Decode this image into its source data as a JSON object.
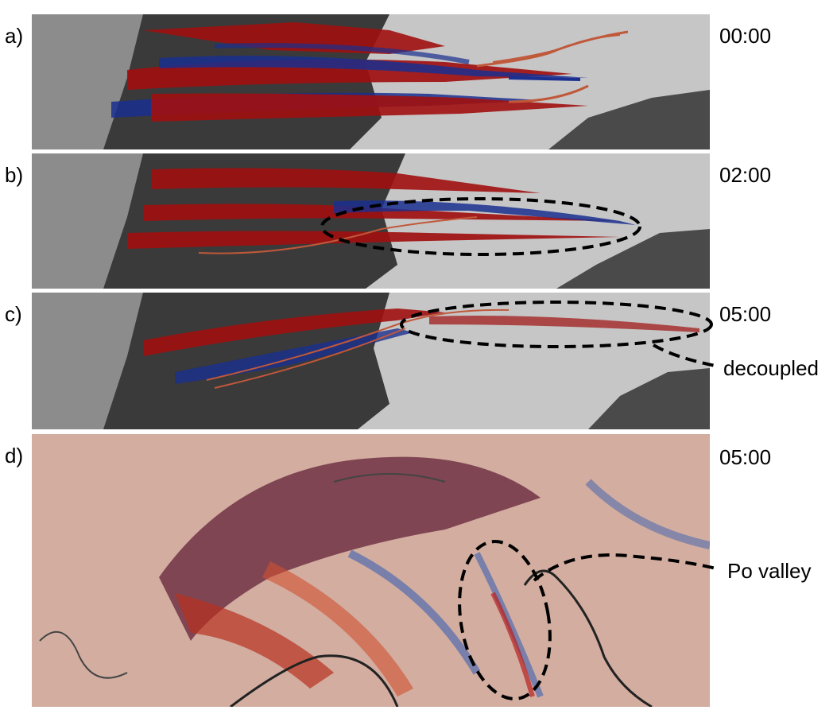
{
  "panels": [
    {
      "letter": "a)",
      "time": "00:00"
    },
    {
      "letter": "b)",
      "time": "02:00"
    },
    {
      "letter": "c)",
      "time": "05:00"
    },
    {
      "letter": "d)",
      "time": "05:00"
    }
  ],
  "annotations": {
    "decoupled": "decoupled",
    "po_valley": "Po valley"
  },
  "colors": {
    "red": "#a01010",
    "blue": "#1a2f8f",
    "background_gray": "#c8c8c8",
    "trajectory": "#c0583a"
  }
}
